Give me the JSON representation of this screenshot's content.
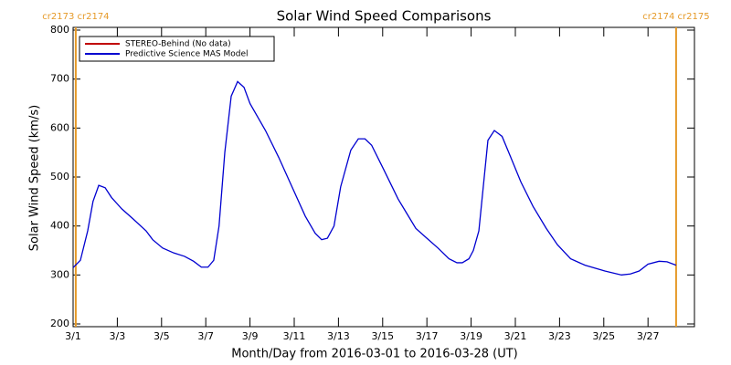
{
  "chart_data": {
    "type": "line",
    "title": "Solar Wind Speed Comparisons",
    "xlabel": "Month/Day from 2016-03-01 to 2016-03-28 (UT)",
    "ylabel": "Solar Wind Speed (km/s)",
    "xlim": [
      0,
      28.1
    ],
    "ylim": [
      200,
      800
    ],
    "xticks": [
      {
        "value": 0,
        "label": "3/1"
      },
      {
        "value": 2,
        "label": "3/3"
      },
      {
        "value": 4,
        "label": "3/5"
      },
      {
        "value": 6,
        "label": "3/7"
      },
      {
        "value": 8,
        "label": "3/9"
      },
      {
        "value": 10,
        "label": "3/11"
      },
      {
        "value": 12,
        "label": "3/13"
      },
      {
        "value": 14,
        "label": "3/15"
      },
      {
        "value": 16,
        "label": "3/17"
      },
      {
        "value": 18,
        "label": "3/19"
      },
      {
        "value": 20,
        "label": "3/21"
      },
      {
        "value": 22,
        "label": "3/23"
      },
      {
        "value": 24,
        "label": "3/25"
      },
      {
        "value": 26,
        "label": "3/27"
      }
    ],
    "yticks": [
      200,
      300,
      400,
      500,
      600,
      700,
      800
    ],
    "legend": "upper left",
    "annotations": [
      {
        "x": 0.12,
        "label": "cr2173 cr2174",
        "color": "#e69a28"
      },
      {
        "x": 27.27,
        "label": "cr2174 cr2175",
        "color": "#e69a28"
      }
    ],
    "x": [
      0,
      0.33,
      0.66,
      0.9,
      1.16,
      1.45,
      1.74,
      2.2,
      2.7,
      3.3,
      3.6,
      4.05,
      4.55,
      5.04,
      5.45,
      5.8,
      6.1,
      6.36,
      6.6,
      6.86,
      7.15,
      7.44,
      7.73,
      8.0,
      8.7,
      9.3,
      9.9,
      10.5,
      10.95,
      11.24,
      11.5,
      11.8,
      12.1,
      12.56,
      12.9,
      13.2,
      13.5,
      14.05,
      14.7,
      15.1,
      15.5,
      16.0,
      16.5,
      17.0,
      17.36,
      17.6,
      17.9,
      18.1,
      18.35,
      18.76,
      19.05,
      19.4,
      19.75,
      20.25,
      20.8,
      21.4,
      21.9,
      22.5,
      23.15,
      24.05,
      24.8,
      25.2,
      25.6,
      26.0,
      26.5,
      26.86,
      27.27
    ],
    "series": [
      {
        "name": "STEREO-Behind (No data)",
        "color": "#c00000"
      },
      {
        "name": "Predictive Science MAS Model",
        "color": "#0000d0",
        "values": [
          315,
          330,
          390,
          450,
          483,
          478,
          458,
          435,
          415,
          390,
          372,
          355,
          345,
          338,
          328,
          316,
          316,
          330,
          400,
          550,
          665,
          695,
          683,
          650,
          595,
          540,
          480,
          420,
          385,
          372,
          375,
          400,
          480,
          555,
          578,
          578,
          565,
          515,
          455,
          425,
          395,
          375,
          355,
          333,
          325,
          325,
          333,
          350,
          390,
          575,
          595,
          583,
          545,
          490,
          440,
          395,
          362,
          333,
          320,
          308,
          300,
          302,
          308,
          322,
          328,
          327,
          320
        ]
      }
    ]
  }
}
